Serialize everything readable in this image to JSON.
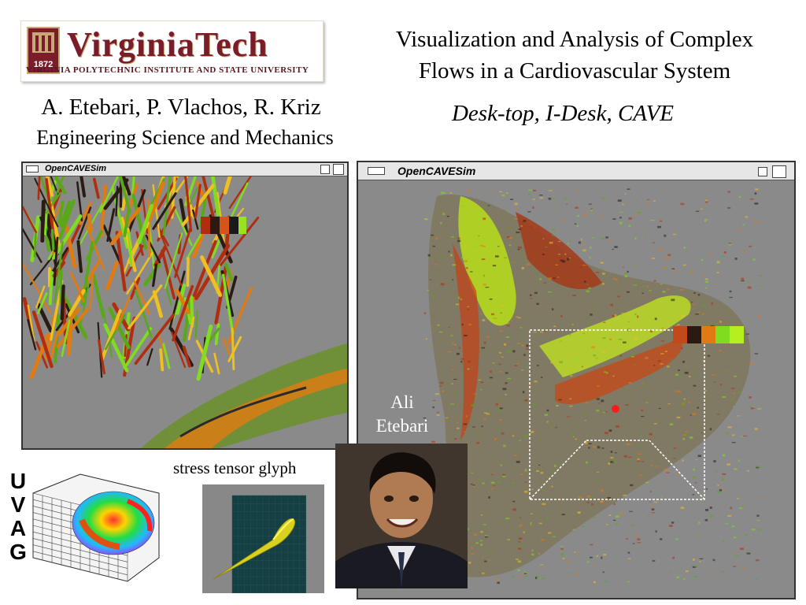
{
  "logo": {
    "name": "VirginiaTech",
    "subline": "VIRGINIA POLYTECHNIC INSTITUTE AND STATE UNIVERSITY",
    "seal_year": "1872"
  },
  "title": {
    "line1": "Visualization and Analysis of Complex",
    "line2": "Flows in a Cardiovascular System"
  },
  "subtitle": "Desk-top, I-Desk, CAVE",
  "authors": "A. Etebari, P. Vlachos, R. Kriz",
  "department": "Engineering Science and Mechanics",
  "windows": {
    "left_title": "OpenCAVESim",
    "right_title": "OpenCAVESim"
  },
  "uvag": [
    "U",
    "V",
    "A",
    "G"
  ],
  "glyph_caption": "stress tensor glyph",
  "photo_caption": {
    "line1": "Ali",
    "line2": "Etebari"
  },
  "colors": {
    "logo_maroon": "#7b1c2a",
    "window_bg": "#8a8a8a",
    "flow_green": "#7fdc1f",
    "flow_orange": "#e27a12",
    "flow_red": "#b02d10",
    "marker_red": "#ff1a1a"
  },
  "icons": {
    "window_menu": "window-menu-icon",
    "minimize": "minimize-icon",
    "maximize": "maximize-icon"
  }
}
